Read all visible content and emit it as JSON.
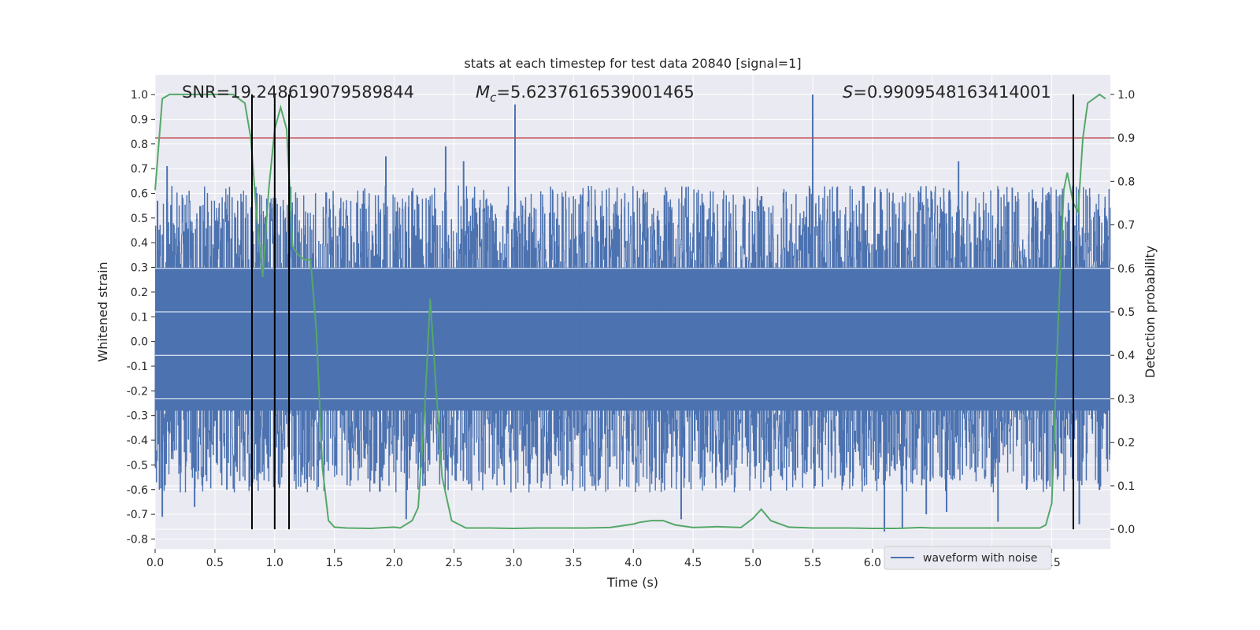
{
  "chart_data": {
    "type": "line",
    "title": "stats at each timestep for test data 20840 [signal=1]",
    "xlabel": "Time (s)",
    "ylabel": "Whitened strain",
    "y2label": "Detection probability",
    "xlim": [
      0.0,
      7.99
    ],
    "ylim": [
      -0.84,
      1.08
    ],
    "y2lim": [
      -0.045,
      1.045
    ],
    "xticks": [
      "0.0",
      "0.5",
      "1.0",
      "1.5",
      "2.0",
      "2.5",
      "3.0",
      "3.5",
      "4.0",
      "4.5",
      "5.0",
      "5.5",
      "6.0",
      "6.5",
      "7.0",
      "7.5"
    ],
    "yticks": [
      "-0.8",
      "-0.7",
      "-0.6",
      "-0.5",
      "-0.4",
      "-0.3",
      "-0.2",
      "-0.1",
      "0.0",
      "0.1",
      "0.2",
      "0.3",
      "0.4",
      "0.5",
      "0.6",
      "0.7",
      "0.8",
      "0.9",
      "1.0"
    ],
    "y2ticks": [
      "0.0",
      "0.1",
      "0.2",
      "0.3",
      "0.4",
      "0.5",
      "0.6",
      "0.7",
      "0.8",
      "0.9",
      "1.0"
    ],
    "grid": true,
    "legend_position": "lower-right",
    "annotations": {
      "snr": "SNR=19.248619079589844",
      "mc_symbol": "M",
      "mc_sub": "c",
      "mc_value": "=5.6237616539001465",
      "s_symbol": "S",
      "s_value": "=0.9909548163414001"
    },
    "threshold": {
      "y2": 0.9,
      "color": "#c44e52"
    },
    "vertical_markers": [
      0.81,
      1.0,
      1.12,
      7.68
    ],
    "series": [
      {
        "name": "waveform with noise",
        "color": "#4c72b0",
        "axis": "left",
        "style": "dense-noise",
        "band": [
          -0.28,
          0.3
        ],
        "spikes": [
          {
            "x": 0.02,
            "y": 0.57
          },
          {
            "x": 0.1,
            "y": 0.71
          },
          {
            "x": 0.06,
            "y": -0.71
          },
          {
            "x": 0.6,
            "y": -0.6
          },
          {
            "x": 0.33,
            "y": -0.67
          },
          {
            "x": 1.93,
            "y": 0.75
          },
          {
            "x": 2.43,
            "y": 0.79
          },
          {
            "x": 2.58,
            "y": 0.73
          },
          {
            "x": 3.01,
            "y": 0.96
          },
          {
            "x": 5.5,
            "y": 1.0
          },
          {
            "x": 4.4,
            "y": -0.72
          },
          {
            "x": 2.1,
            "y": -0.72
          },
          {
            "x": 6.1,
            "y": -0.77
          },
          {
            "x": 6.25,
            "y": -0.76
          },
          {
            "x": 6.45,
            "y": -0.7
          },
          {
            "x": 6.62,
            "y": -0.69
          },
          {
            "x": 6.72,
            "y": 0.73
          },
          {
            "x": 7.05,
            "y": -0.73
          },
          {
            "x": 7.73,
            "y": -0.74
          },
          {
            "x": 7.9,
            "y": -0.6
          },
          {
            "x": 5.92,
            "y": 0.63
          }
        ]
      },
      {
        "name": "detection probability",
        "color": "#55a868",
        "axis": "right",
        "x": [
          0.0,
          0.06,
          0.12,
          0.2,
          0.3,
          0.4,
          0.5,
          0.6,
          0.65,
          0.7,
          0.75,
          0.8,
          0.85,
          0.9,
          0.95,
          1.0,
          1.05,
          1.1,
          1.15,
          1.2,
          1.25,
          1.3,
          1.35,
          1.4,
          1.45,
          1.5,
          1.6,
          1.8,
          2.0,
          2.05,
          2.15,
          2.2,
          2.25,
          2.3,
          2.4,
          2.48,
          2.6,
          2.8,
          3.0,
          3.2,
          3.4,
          3.6,
          3.8,
          3.9,
          4.0,
          4.05,
          4.15,
          4.25,
          4.35,
          4.5,
          4.7,
          4.9,
          5.0,
          5.07,
          5.15,
          5.3,
          5.5,
          5.8,
          6.0,
          6.2,
          6.3,
          6.4,
          6.5,
          6.6,
          6.8,
          7.0,
          7.2,
          7.4,
          7.45,
          7.5,
          7.55,
          7.6,
          7.63,
          7.68,
          7.72,
          7.76,
          7.8,
          7.85,
          7.9,
          7.95
        ],
        "y": [
          0.78,
          0.99,
          1.0,
          1.0,
          1.0,
          1.0,
          1.0,
          1.0,
          1.0,
          0.99,
          0.98,
          0.9,
          0.72,
          0.58,
          0.78,
          0.92,
          0.97,
          0.92,
          0.65,
          0.63,
          0.62,
          0.62,
          0.45,
          0.14,
          0.02,
          0.005,
          0.003,
          0.002,
          0.005,
          0.003,
          0.02,
          0.05,
          0.25,
          0.53,
          0.12,
          0.02,
          0.003,
          0.003,
          0.002,
          0.003,
          0.003,
          0.003,
          0.004,
          0.008,
          0.012,
          0.016,
          0.02,
          0.02,
          0.01,
          0.004,
          0.006,
          0.004,
          0.025,
          0.046,
          0.02,
          0.005,
          0.003,
          0.003,
          0.002,
          0.002,
          0.003,
          0.004,
          0.003,
          0.003,
          0.003,
          0.003,
          0.003,
          0.003,
          0.01,
          0.06,
          0.45,
          0.78,
          0.82,
          0.75,
          0.73,
          0.9,
          0.98,
          0.99,
          1.0,
          0.99
        ]
      }
    ]
  }
}
